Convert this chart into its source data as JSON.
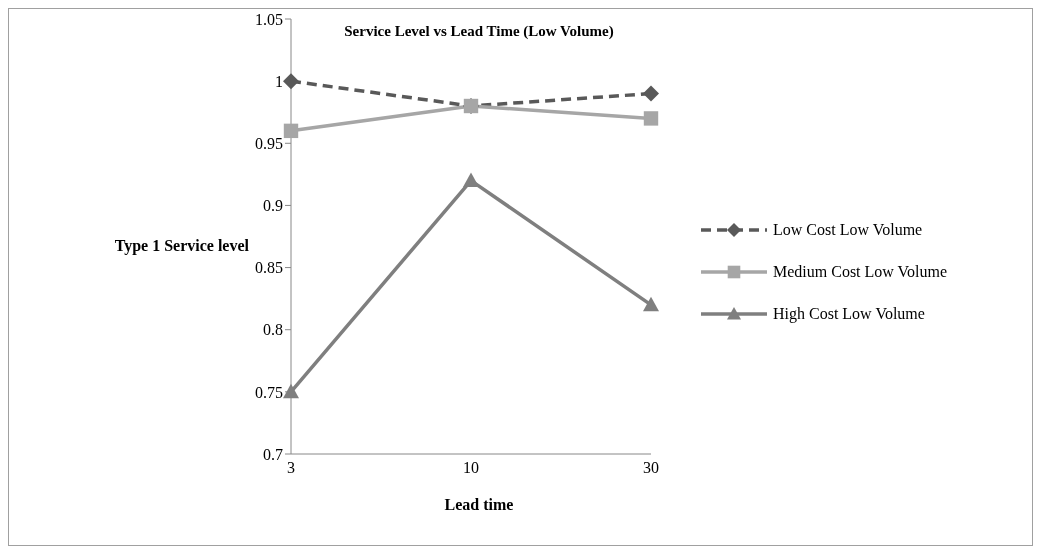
{
  "chart_data": {
    "type": "line",
    "title": "Service Level vs Lead Time (Low Volume)",
    "xlabel": "Lead time",
    "ylabel": "Type 1 Service level",
    "categories": [
      "3",
      "10",
      "30"
    ],
    "series": [
      {
        "name": "Low Cost Low Volume",
        "color": "#595959",
        "values": [
          1,
          0.98,
          0.99
        ],
        "marker": "diamond",
        "line_style": "dashed"
      },
      {
        "name": "Medium Cost Low Volume",
        "color": "#a6a6a6",
        "values": [
          0.96,
          0.98,
          0.97
        ],
        "marker": "square",
        "line_style": "solid"
      },
      {
        "name": "High Cost Low Volume",
        "color": "#7f7f7f",
        "values": [
          0.75,
          0.92,
          0.82
        ],
        "marker": "triangle",
        "line_style": "solid"
      }
    ],
    "ylim": [
      0.7,
      1.05
    ],
    "yticks": [
      0.7,
      0.75,
      0.8,
      0.85,
      0.9,
      0.95,
      1,
      1.05
    ],
    "grid": false,
    "legend": "right"
  }
}
